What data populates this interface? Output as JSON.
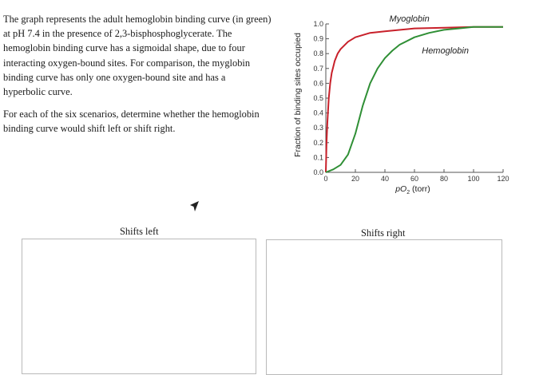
{
  "intro": {
    "paragraph1_lines": [
      "The graph represents the adult hemoglobin binding curve (in green)",
      "at pH 7.4 in the presence of 2,3-bisphosphoglycerate. The",
      "hemoglobin binding curve has a sigmoidal shape, due to four",
      "interacting oxygen-bound sites. For comparison, the myglobin",
      "binding curve has only one oxygen-bound site and has a",
      "hyperbolic curve."
    ],
    "paragraph2_lines": [
      "For each of the six scenarios, determine whether the hemoglobin",
      "binding curve would shift left or shift right."
    ]
  },
  "columns": {
    "left_label": "Shifts left",
    "right_label": "Shifts right"
  },
  "colors": {
    "myoglobin": "#c8202a",
    "hemoglobin": "#2f8f35",
    "zone_border": "#b9b9b9"
  },
  "chart_data": {
    "type": "line",
    "title": "",
    "xlabel": "pO",
    "xlabel_subscript": "2",
    "xlabel_unit": "(torr)",
    "ylabel": "Fraction of binding sites occupied",
    "xlim": [
      0,
      120
    ],
    "ylim": [
      0,
      1.0
    ],
    "x_ticks": [
      0,
      20,
      40,
      60,
      80,
      100,
      120
    ],
    "x_tick_labels": [
      "0",
      "20",
      "40",
      "60",
      "80",
      "100",
      "120"
    ],
    "y_ticks": [
      0,
      0.1,
      0.2,
      0.3,
      0.4,
      0.5,
      0.6,
      0.7,
      0.8,
      0.9,
      1.0
    ],
    "y_tick_labels": [
      "0.0",
      "0.1",
      "0.2",
      "0.3",
      "0.4",
      "0.5",
      "0.6",
      "0.7",
      "0.8",
      "0.9",
      "1.0"
    ],
    "grid": false,
    "series": [
      {
        "name": "Myoglobin",
        "color": "#c8202a",
        "x": [
          0,
          0.5,
          1,
          2,
          3,
          4,
          5,
          6,
          8,
          10,
          15,
          20,
          30,
          40,
          60,
          80,
          100,
          120
        ],
        "y": [
          0,
          0.2,
          0.33,
          0.5,
          0.6,
          0.67,
          0.71,
          0.75,
          0.8,
          0.83,
          0.88,
          0.91,
          0.94,
          0.95,
          0.97,
          0.975,
          0.98,
          0.98
        ]
      },
      {
        "name": "Hemoglobin",
        "color": "#2f8f35",
        "x": [
          0,
          5,
          10,
          15,
          20,
          25,
          30,
          35,
          40,
          45,
          50,
          60,
          70,
          80,
          90,
          100,
          110,
          120
        ],
        "y": [
          0,
          0.02,
          0.05,
          0.12,
          0.26,
          0.45,
          0.6,
          0.7,
          0.77,
          0.82,
          0.86,
          0.91,
          0.94,
          0.96,
          0.97,
          0.98,
          0.98,
          0.98
        ]
      }
    ]
  }
}
